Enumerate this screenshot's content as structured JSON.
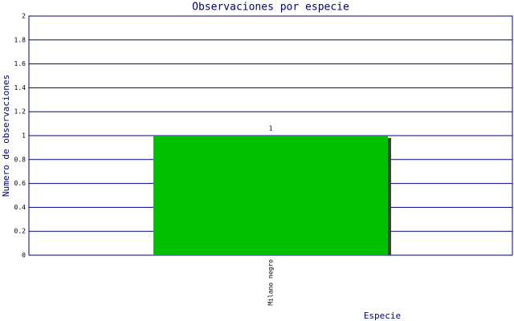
{
  "chart_data": {
    "type": "bar",
    "title": "Observaciones por especie",
    "x_label": "Especie",
    "y_label": "Numero de observaciones",
    "categories": [
      "Milano negro"
    ],
    "values": [
      1
    ],
    "color": "#00c000",
    "ylim": [
      0,
      2
    ],
    "yticks": [
      0,
      0.2,
      0.4,
      0.6,
      0.8,
      1,
      1.2,
      1.4,
      1.6,
      1.8,
      2
    ],
    "grid": true
  }
}
